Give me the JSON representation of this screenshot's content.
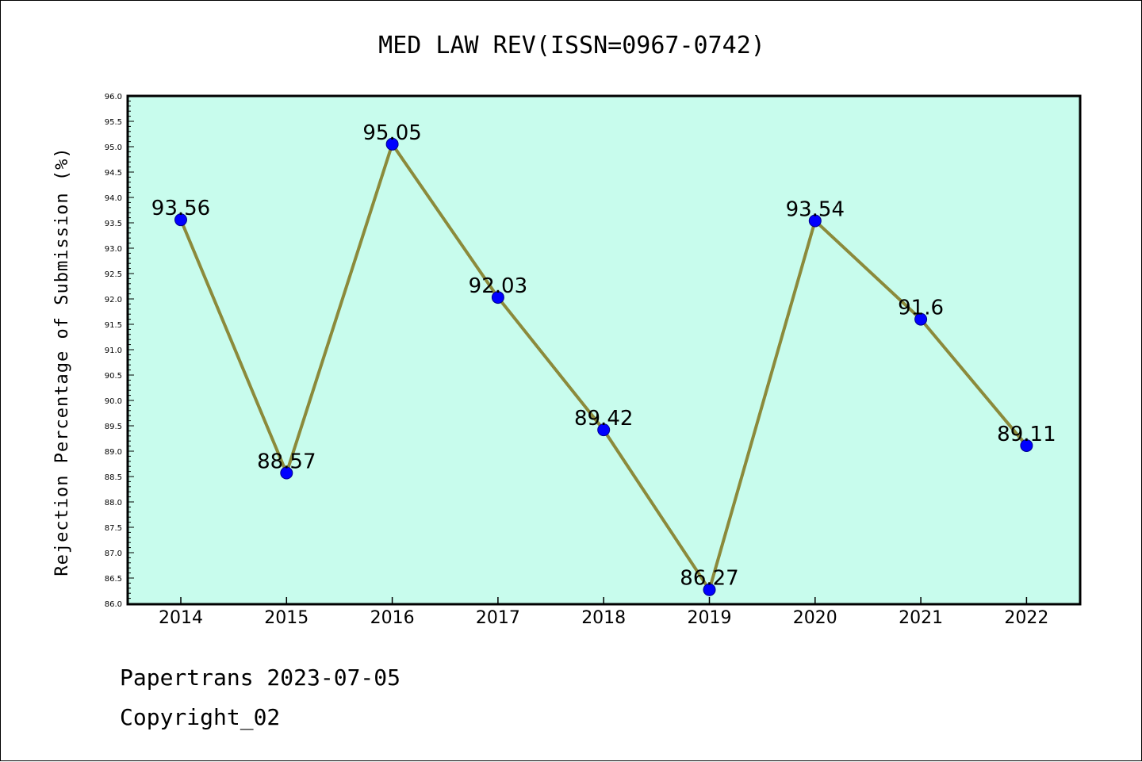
{
  "chart_data": {
    "type": "line",
    "title": "MED LAW REV(ISSN=0967-0742)",
    "ylabel": "Rejection Percentage of Submission (%)",
    "xlabel": "",
    "categories": [
      "2014",
      "2015",
      "2016",
      "2017",
      "2018",
      "2019",
      "2020",
      "2021",
      "2022"
    ],
    "values": [
      93.56,
      88.57,
      95.05,
      92.03,
      89.42,
      86.27,
      93.54,
      91.6,
      89.11
    ],
    "value_labels": [
      "93.56",
      "88.57",
      "95.05",
      "92.03",
      "89.42",
      "86.27",
      "93.54",
      "91.6",
      "89.11"
    ],
    "ylim": [
      86.0,
      96.0
    ],
    "ytick_step": 0.5,
    "grid": false,
    "colors": {
      "plot_background": "#c8fced",
      "line": "#8b8a3b",
      "marker": "#0000ff",
      "marker_edge": "#00008b"
    }
  },
  "footer": {
    "line1": "Papertrans 2023-07-05",
    "line2": "Copyright_02"
  }
}
